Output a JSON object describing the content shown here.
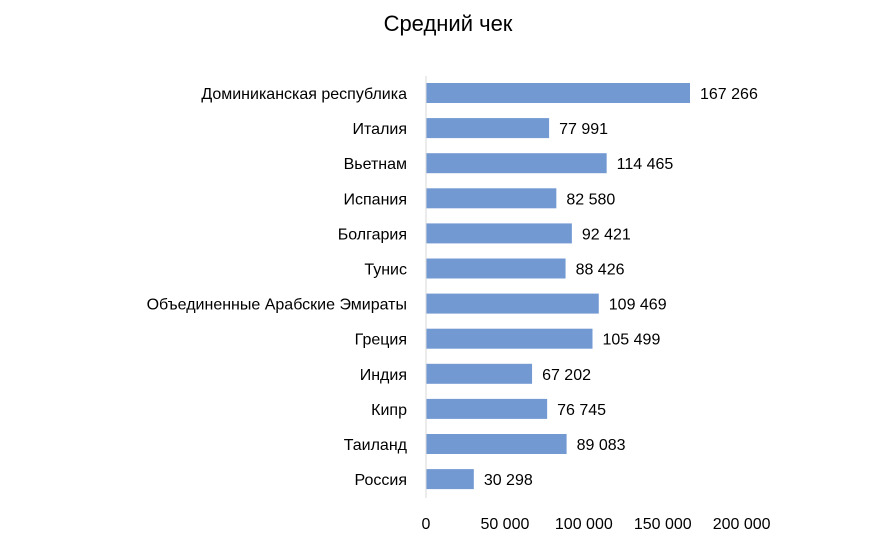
{
  "chart_data": {
    "type": "bar",
    "orientation": "horizontal",
    "title": "Средний чек",
    "xlabel": "",
    "ylabel": "",
    "categories": [
      "Доминиканская республика",
      "Италия",
      "Вьетнам",
      "Испания",
      "Болгария",
      "Тунис",
      "Объединенные Арабские Эмираты",
      "Греция",
      "Индия",
      "Кипр",
      "Таиланд",
      "Россия"
    ],
    "values": [
      167266,
      77991,
      114465,
      82580,
      92421,
      88426,
      109469,
      105499,
      67202,
      76745,
      89083,
      30298
    ],
    "value_labels": [
      "167 266",
      "77 991",
      "114 465",
      "82 580",
      "92 421",
      "88 426",
      "109 469",
      "105 499",
      "67 202",
      "76 745",
      "89 083",
      "30 298"
    ],
    "xlim": [
      0,
      200000
    ],
    "xticks": [
      0,
      50000,
      100000,
      150000,
      200000
    ],
    "xtick_labels": [
      "0",
      "50 000",
      "100 000",
      "150 000",
      "200 000"
    ],
    "grid": false,
    "legend": "none",
    "bar_color": "#7399d3",
    "axis_color": "#d9d9d9"
  }
}
